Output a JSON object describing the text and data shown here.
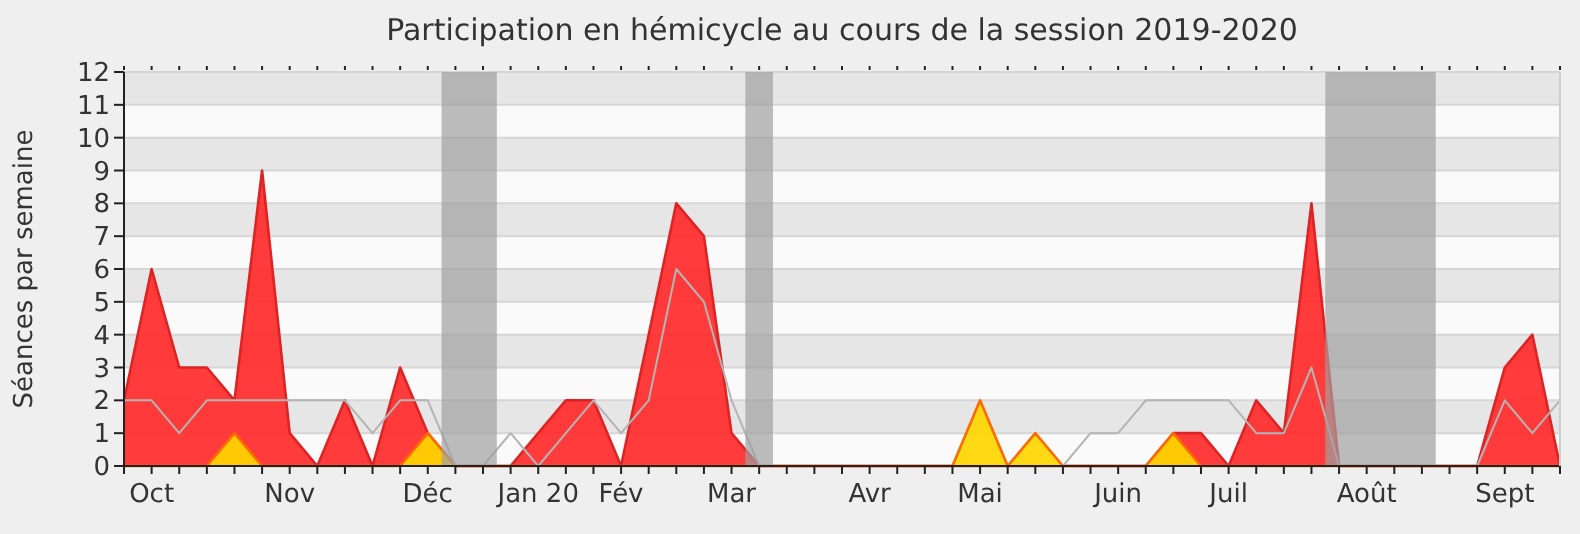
{
  "chart_data": {
    "type": "area",
    "title": "Participation en hémicycle au cours de la session 2019-2020",
    "ylabel": "Séances par semaine",
    "x": [
      "2019-09-30",
      "2019-10-07",
      "2019-10-14",
      "2019-10-21",
      "2019-10-28",
      "2019-11-04",
      "2019-11-11",
      "2019-11-18",
      "2019-11-25",
      "2019-12-02",
      "2019-12-09",
      "2019-12-16",
      "2019-12-23",
      "2019-12-30",
      "2020-01-06",
      "2020-01-13",
      "2020-01-20",
      "2020-01-27",
      "2020-02-03",
      "2020-02-10",
      "2020-02-17",
      "2020-02-24",
      "2020-03-02",
      "2020-03-09",
      "2020-03-16",
      "2020-03-23",
      "2020-03-30",
      "2020-04-06",
      "2020-04-13",
      "2020-04-20",
      "2020-04-27",
      "2020-05-04",
      "2020-05-11",
      "2020-05-18",
      "2020-05-25",
      "2020-06-01",
      "2020-06-08",
      "2020-06-15",
      "2020-06-22",
      "2020-06-29",
      "2020-07-06",
      "2020-07-13",
      "2020-07-20",
      "2020-07-27",
      "2020-08-03",
      "2020-08-10",
      "2020-08-17",
      "2020-08-24",
      "2020-08-31",
      "2020-09-07",
      "2020-09-14",
      "2020-09-21",
      "2020-09-28"
    ],
    "series": [
      {
        "color": "#ff2a2a",
        "values": [
          2,
          6,
          3,
          3,
          2,
          9,
          1,
          0,
          2,
          0,
          3,
          1,
          0,
          0,
          0,
          1,
          2,
          2,
          0,
          4,
          8,
          7,
          1,
          0,
          0,
          0,
          0,
          0,
          0,
          0,
          0,
          0,
          0,
          0,
          0,
          0,
          0,
          0,
          1,
          1,
          0,
          2,
          1,
          8,
          0,
          0,
          0,
          0,
          0,
          0,
          3,
          4,
          0
        ]
      },
      {
        "type": "area",
        "color": "#ffd700",
        "values": [
          0,
          0,
          0,
          0,
          1,
          0,
          0,
          0,
          0,
          0,
          0,
          1,
          0,
          0,
          0,
          0,
          0,
          0,
          0,
          0,
          0,
          0,
          0,
          0,
          0,
          0,
          0,
          0,
          0,
          0,
          0,
          2,
          0,
          1,
          0,
          0,
          0,
          0,
          1,
          0,
          0,
          0,
          0,
          0,
          0,
          0,
          0,
          0,
          0,
          0,
          0,
          0,
          0
        ]
      },
      {
        "type": "line",
        "color": "#b4b4b4",
        "values": [
          2,
          2,
          1,
          2,
          2,
          2,
          2,
          2,
          2,
          1,
          2,
          2,
          0,
          0,
          1,
          0,
          1,
          2,
          1,
          2,
          6,
          5,
          2,
          0,
          0,
          0,
          0,
          0,
          0,
          0,
          0,
          0,
          0,
          0,
          0,
          1,
          1,
          2,
          2,
          2,
          2,
          1,
          1,
          3,
          0,
          0,
          0,
          0,
          0,
          0,
          2,
          1,
          2
        ]
      }
    ],
    "xlim": [
      "2019-09-30",
      "2020-09-28"
    ],
    "xticks": [
      {
        "value": "2019-09-30",
        "label": null
      },
      {
        "value": "2019-10-07",
        "label": "Oct"
      },
      {
        "value": "2019-10-14",
        "label": null
      },
      {
        "value": "2019-10-21",
        "label": null
      },
      {
        "value": "2019-10-28",
        "label": null
      },
      {
        "value": "2019-11-04",
        "label": null
      },
      {
        "value": "2019-11-11",
        "label": "Nov"
      },
      {
        "value": "2019-11-18",
        "label": null
      },
      {
        "value": "2019-11-25",
        "label": null
      },
      {
        "value": "2019-12-02",
        "label": null
      },
      {
        "value": "2019-12-09",
        "label": null
      },
      {
        "value": "2019-12-16",
        "label": "Déc"
      },
      {
        "value": "2019-12-23",
        "label": null
      },
      {
        "value": "2019-12-30",
        "label": null
      },
      {
        "value": "2020-01-06",
        "label": null
      },
      {
        "value": "2020-01-13",
        "label": "Jan 20"
      },
      {
        "value": "2020-01-20",
        "label": null
      },
      {
        "value": "2020-01-27",
        "label": null
      },
      {
        "value": "2020-02-03",
        "label": "Fév"
      },
      {
        "value": "2020-02-10",
        "label": null
      },
      {
        "value": "2020-02-17",
        "label": null
      },
      {
        "value": "2020-02-24",
        "label": null
      },
      {
        "value": "2020-03-02",
        "label": "Mar"
      },
      {
        "value": "2020-03-09",
        "label": null
      },
      {
        "value": "2020-03-16",
        "label": null
      },
      {
        "value": "2020-03-23",
        "label": null
      },
      {
        "value": "2020-03-30",
        "label": null
      },
      {
        "value": "2020-04-06",
        "label": "Avr"
      },
      {
        "value": "2020-04-13",
        "label": null
      },
      {
        "value": "2020-04-20",
        "label": null
      },
      {
        "value": "2020-04-27",
        "label": null
      },
      {
        "value": "2020-05-04",
        "label": "Mai"
      },
      {
        "value": "2020-05-11",
        "label": null
      },
      {
        "value": "2020-05-18",
        "label": null
      },
      {
        "value": "2020-05-25",
        "label": null
      },
      {
        "value": "2020-06-01",
        "label": null
      },
      {
        "value": "2020-06-08",
        "label": "Juin"
      },
      {
        "value": "2020-06-15",
        "label": null
      },
      {
        "value": "2020-06-22",
        "label": null
      },
      {
        "value": "2020-06-29",
        "label": null
      },
      {
        "value": "2020-07-06",
        "label": "Juil"
      },
      {
        "value": "2020-07-13",
        "label": null
      },
      {
        "value": "2020-07-20",
        "label": null
      },
      {
        "value": "2020-07-27",
        "label": null
      },
      {
        "value": "2020-08-03",
        "label": null
      },
      {
        "value": "2020-08-10",
        "label": "Août"
      },
      {
        "value": "2020-08-17",
        "label": null
      },
      {
        "value": "2020-08-24",
        "label": null
      },
      {
        "value": "2020-08-31",
        "label": null
      },
      {
        "value": "2020-09-07",
        "label": null
      },
      {
        "value": "2020-09-14",
        "label": "Sept"
      },
      {
        "value": "2020-09-21",
        "label": null
      },
      {
        "value": "2020-09-28",
        "label": null
      }
    ],
    "ylim": [
      0,
      12
    ],
    "yticks": [
      0,
      1,
      2,
      3,
      4,
      5,
      6,
      7,
      8,
      9,
      10,
      11,
      12
    ],
    "grid": "y",
    "bands": [
      {
        "axis": "x",
        "from": "2019-12-19T12:00",
        "to": "2020-01-02T12:00",
        "color": "#a0a0a0"
      },
      {
        "axis": "x",
        "from": "2020-03-05T12:00",
        "to": "2020-03-12T12:00",
        "color": "#a0a0a0"
      },
      {
        "axis": "x",
        "from": "2020-07-30T12:00",
        "to": "2020-08-27T12:00",
        "color": "#a0a0a0"
      }
    ]
  }
}
